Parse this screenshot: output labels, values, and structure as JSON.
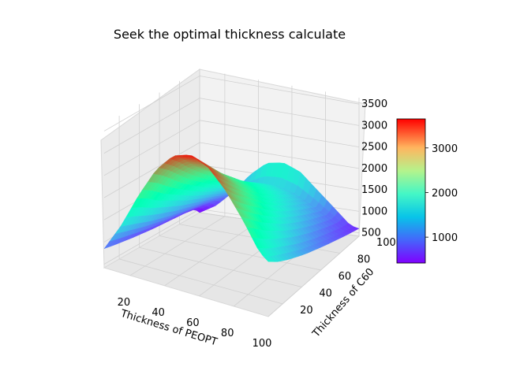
{
  "chart_data": {
    "type": "surface3d",
    "title": "Seek the optimal thickness calculate",
    "xlabel": "Thickness of PEOPT",
    "ylabel": "Thickness of C60",
    "zlabel": "",
    "colormap": "rainbow",
    "x_range": [
      5,
      100
    ],
    "y_range": [
      5,
      100
    ],
    "z_range": [
      420,
      3650
    ],
    "x_ticks": [
      20,
      40,
      60,
      80,
      100
    ],
    "y_ticks": [
      20,
      40,
      60,
      80,
      100
    ],
    "z_ticks": [
      500,
      1000,
      1500,
      2000,
      2500,
      3000,
      3500
    ],
    "colorbar_ticks": [
      1000,
      2000,
      3000
    ],
    "colorbar_range": [
      420,
      3650
    ],
    "grid": true,
    "surface": {
      "x": [
        5,
        15,
        25,
        35,
        45,
        55,
        65,
        75,
        85,
        95,
        100
      ],
      "y": [
        5,
        15,
        25,
        35,
        45,
        55,
        65,
        75,
        85,
        95,
        100
      ],
      "z": [
        [
          850,
          1500,
          2300,
          3000,
          3450,
          3600,
          3450,
          3050,
          2500,
          1850,
          1700
        ],
        [
          800,
          1400,
          2150,
          2800,
          3200,
          3300,
          3150,
          2750,
          2250,
          1650,
          1500
        ],
        [
          760,
          1300,
          1950,
          2550,
          2900,
          3000,
          2850,
          2500,
          2000,
          1500,
          1350
        ],
        [
          720,
          1200,
          1800,
          2300,
          2650,
          2700,
          2550,
          2250,
          1800,
          1350,
          1220
        ],
        [
          690,
          1120,
          1650,
          2100,
          2400,
          2450,
          2300,
          2000,
          1600,
          1200,
          1100
        ],
        [
          660,
          1040,
          1500,
          1900,
          2150,
          2200,
          2050,
          1780,
          1430,
          1080,
          1000
        ],
        [
          640,
          980,
          1380,
          1720,
          1950,
          1980,
          1850,
          1600,
          1280,
          960,
          900
        ],
        [
          620,
          920,
          1260,
          1560,
          1760,
          1780,
          1650,
          1430,
          1140,
          860,
          810
        ],
        [
          600,
          860,
          1150,
          1400,
          1580,
          1600,
          1480,
          1280,
          1020,
          760,
          720
        ],
        [
          560,
          780,
          1020,
          1240,
          1380,
          1400,
          1300,
          1120,
          900,
          680,
          640
        ],
        [
          420,
          640,
          1000,
          1450,
          1780,
          1850,
          1700,
          1350,
          1000,
          640,
          600
        ]
      ]
    }
  }
}
